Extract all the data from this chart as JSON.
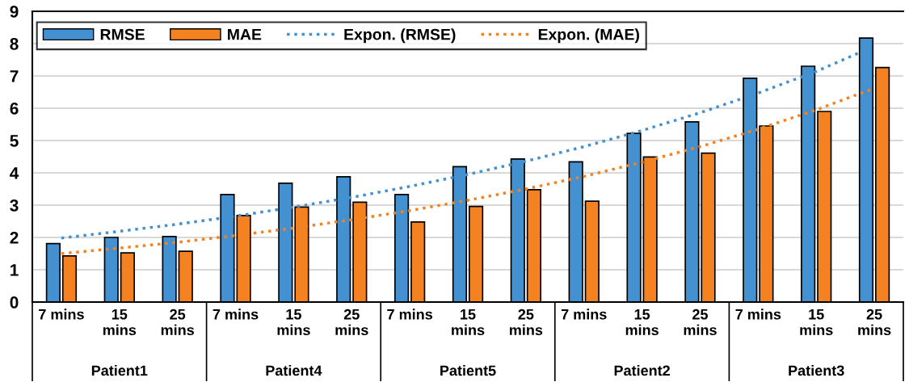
{
  "chart_data": {
    "type": "bar",
    "categories": [
      "7 mins",
      "15\nmins",
      "25\nmins",
      "7 mins",
      "15\nmins",
      "25\nmins",
      "7 mins",
      "15\nmins",
      "25\nmins",
      "7 mins",
      "15\nmins",
      "25\nmins",
      "7 mins",
      "15\nmins",
      "25\nmins"
    ],
    "series": [
      {
        "name": "RMSE",
        "color": "#4391d0",
        "values": [
          1.81,
          2.0,
          2.03,
          3.33,
          3.68,
          3.88,
          3.33,
          4.19,
          4.43,
          4.34,
          5.22,
          5.58,
          6.93,
          7.3,
          8.17
        ]
      },
      {
        "name": "MAE",
        "color": "#f58220",
        "values": [
          1.43,
          1.52,
          1.57,
          2.68,
          2.94,
          3.09,
          2.48,
          2.96,
          3.48,
          3.12,
          4.49,
          4.61,
          5.45,
          5.9,
          7.26
        ]
      },
      {
        "name": "Expon. (RMSE)",
        "type": "line",
        "line_style": "dotted",
        "color": "#4391d0",
        "values": [
          1.98,
          2.19,
          2.41,
          2.66,
          2.94,
          3.24,
          3.58,
          3.95,
          4.36,
          4.81,
          5.31,
          5.86,
          6.47,
          7.14,
          7.92
        ]
      },
      {
        "name": "Expon. (MAE)",
        "type": "line",
        "line_style": "dotted",
        "color": "#f58220",
        "values": [
          1.5,
          1.67,
          1.85,
          2.06,
          2.29,
          2.55,
          2.83,
          3.15,
          3.5,
          3.89,
          4.33,
          4.81,
          5.35,
          5.95,
          6.62
        ]
      }
    ],
    "annotations": [
      "Patient1",
      "Patient4",
      "Patient5",
      "Patient2",
      "Patient3"
    ],
    "ylim": [
      0,
      9
    ],
    "yticks": [
      0,
      1,
      2,
      3,
      4,
      5,
      6,
      7,
      8,
      9
    ],
    "grid": "y",
    "legend": "top"
  }
}
